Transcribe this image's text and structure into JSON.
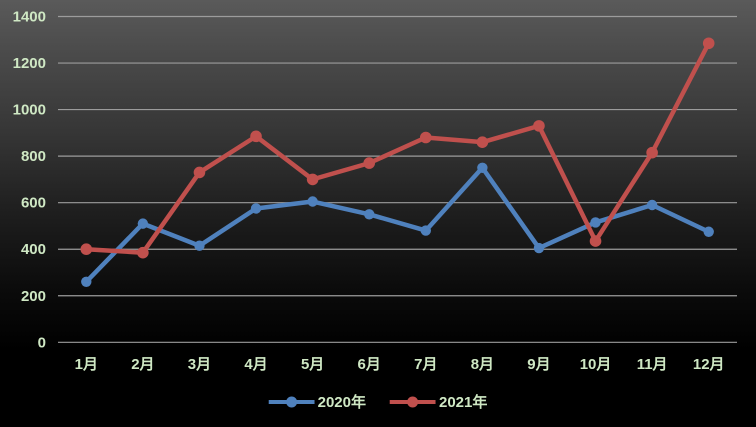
{
  "chart_data": {
    "type": "line",
    "categories": [
      "1月",
      "2月",
      "3月",
      "4月",
      "5月",
      "6月",
      "7月",
      "8月",
      "9月",
      "10月",
      "11月",
      "12月"
    ],
    "series": [
      {
        "name": "2020年",
        "color": "#4F81BD",
        "values": [
          260,
          510,
          415,
          575,
          605,
          550,
          480,
          750,
          405,
          515,
          590,
          475
        ]
      },
      {
        "name": "2021年",
        "color": "#C0504D",
        "values": [
          400,
          385,
          730,
          885,
          700,
          770,
          880,
          860,
          930,
          435,
          815,
          1285
        ]
      }
    ],
    "title": "",
    "xlabel": "",
    "ylabel": "",
    "ylim": [
      0,
      1400
    ],
    "ytick_step": 200,
    "yticks": [
      "0",
      "200",
      "400",
      "600",
      "800",
      "1000",
      "1200",
      "1400"
    ],
    "grid": true,
    "legend_position": "bottom-center"
  },
  "style": {
    "background_top": "#5a5a5a",
    "background_bottom": "#000000",
    "gridline_color": "#9c9c9c",
    "tick_label_color": "#cfe8c4"
  }
}
